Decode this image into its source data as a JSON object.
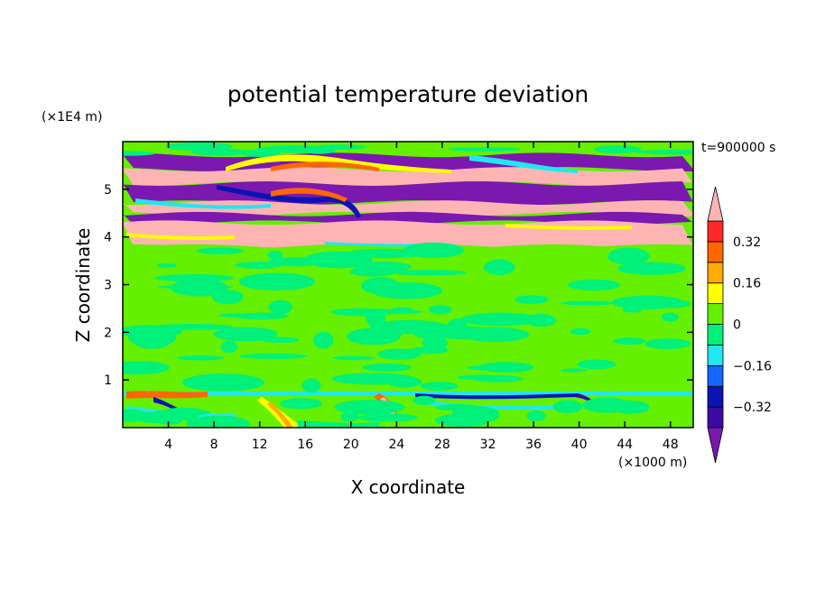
{
  "chart_data": {
    "type": "heatmap",
    "title": "potential temperature deviation",
    "xlabel": "X coordinate",
    "ylabel": "Z coordinate",
    "x_unit": "(×1000 m)",
    "y_unit": "(×1E4 m)",
    "time_label": "t=900000 s",
    "xlim": [
      0,
      50
    ],
    "ylim": [
      0,
      6
    ],
    "x_ticks": [
      4,
      8,
      12,
      16,
      20,
      24,
      28,
      32,
      36,
      40,
      44,
      48
    ],
    "y_ticks": [
      1,
      2,
      3,
      4,
      5
    ],
    "colorbar": {
      "levels": [
        -0.4,
        -0.32,
        -0.24,
        -0.16,
        -0.08,
        0,
        0.08,
        0.16,
        0.24,
        0.32,
        0.4
      ],
      "colors": [
        "#7a18b0",
        "#3c0aa0",
        "#0a14b4",
        "#1466ff",
        "#22e6f0",
        "#00f07a",
        "#64f000",
        "#ffff00",
        "#ffaa00",
        "#ff6600",
        "#ff2828",
        "#ffb4b4"
      ],
      "tick_labels": [
        "0.32",
        "0.16",
        "0",
        "−0.16",
        "−0.32"
      ],
      "tick_values": [
        0.32,
        0.16,
        0,
        -0.16,
        -0.32
      ],
      "extend": "both"
    },
    "layers": [
      {
        "zmin": 5.72,
        "zmax": 6.0,
        "value": 0.02
      },
      {
        "zmin": 5.42,
        "zmax": 5.72,
        "value": -0.42
      },
      {
        "zmin": 5.12,
        "zmax": 5.42,
        "value": 0.42
      },
      {
        "zmin": 4.72,
        "zmax": 5.12,
        "value": -0.42
      },
      {
        "zmin": 4.48,
        "zmax": 4.72,
        "value": 0.42
      },
      {
        "zmin": 4.3,
        "zmax": 4.48,
        "value": -0.42
      },
      {
        "zmin": 3.8,
        "zmax": 4.3,
        "value": 0.42
      },
      {
        "zmin": 0.75,
        "zmax": 3.8,
        "value": 0.02
      },
      {
        "zmin": 0.0,
        "zmax": 0.75,
        "value": 0.02
      }
    ]
  }
}
